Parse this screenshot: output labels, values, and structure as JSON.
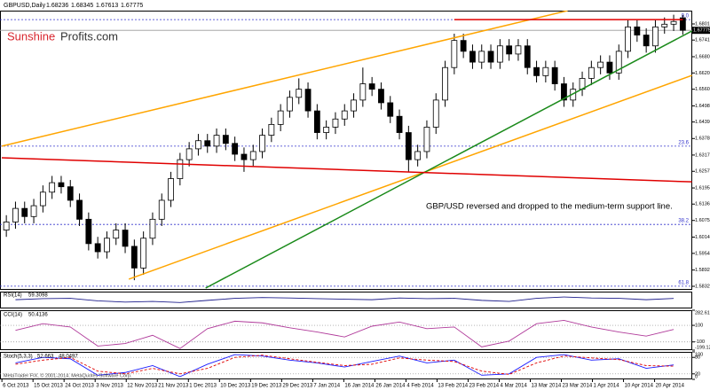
{
  "chart_data": [
    {
      "type": "candlestick",
      "title": "GBPUSD,Daily",
      "watermark": [
        "Sunshine",
        "Profits.com"
      ],
      "annotation": "GBP/USD reversed and dropped to the medium-term support line.",
      "ylim": [
        1.58194,
        1.68501
      ],
      "yticks": [
        {
          "value": 1.6801,
          "label": "1.68010"
        },
        {
          "value": 1.67415,
          "label": "1.67415"
        },
        {
          "value": 1.668,
          "label": "1.66800"
        },
        {
          "value": 1.662,
          "label": "1.66200"
        },
        {
          "value": 1.656,
          "label": "1.65600"
        },
        {
          "value": 1.64985,
          "label": "1.64985"
        },
        {
          "value": 1.6439,
          "label": "1.64390"
        },
        {
          "value": 1.6378,
          "label": "1.63780"
        },
        {
          "value": 1.6317,
          "label": "1.63170"
        },
        {
          "value": 1.6257,
          "label": "1.62570"
        },
        {
          "value": 1.61955,
          "label": "1.61955"
        },
        {
          "value": 1.6136,
          "label": "1.61360"
        },
        {
          "value": 1.60755,
          "label": "1.60755"
        },
        {
          "value": 1.6014,
          "label": "1.60140"
        },
        {
          "value": 1.5954,
          "label": "1.59540"
        },
        {
          "value": 1.58925,
          "label": "1.58925"
        },
        {
          "value": 1.58325,
          "label": "1.58325"
        }
      ],
      "xticks": [
        {
          "value": 0,
          "label": "6 Oct 2013"
        },
        {
          "value": 3.4,
          "label": "15 Oct 2013"
        },
        {
          "value": 6.8,
          "label": "24 Oct 2013"
        },
        {
          "value": 10.2,
          "label": "3 Nov 2013"
        },
        {
          "value": 13.6,
          "label": "12 Nov 2013"
        },
        {
          "value": 17,
          "label": "21 Nov 2013"
        },
        {
          "value": 20.4,
          "label": "1 Dec 2013"
        },
        {
          "value": 23.8,
          "label": "10 Dec 2013"
        },
        {
          "value": 27.2,
          "label": "19 Dec 2013"
        },
        {
          "value": 30.6,
          "label": "29 Dec 2013"
        },
        {
          "value": 34,
          "label": "7 Jan 2014"
        },
        {
          "value": 37.4,
          "label": "16 Jan 2014"
        },
        {
          "value": 40.8,
          "label": "26 Jan 2014"
        },
        {
          "value": 44.2,
          "label": "4 Feb 2014"
        },
        {
          "value": 47.6,
          "label": "13 Feb 2014"
        },
        {
          "value": 51,
          "label": "23 Feb 2014"
        },
        {
          "value": 54.4,
          "label": "4 Mar 2014"
        },
        {
          "value": 57.8,
          "label": "13 Mar 2014"
        },
        {
          "value": 61.2,
          "label": "23 Mar 2014"
        },
        {
          "value": 64.6,
          "label": "1 Apr 2014"
        },
        {
          "value": 68,
          "label": "10 Apr 2014"
        },
        {
          "value": 71.4,
          "label": "20 Apr 2014"
        }
      ],
      "open": [
        1.604,
        1.607,
        1.612,
        1.609,
        1.613,
        1.618,
        1.6215,
        1.62,
        1.615,
        1.608,
        1.599,
        1.596,
        1.601,
        1.604,
        1.598,
        1.59,
        1.601,
        1.608,
        1.615,
        1.623,
        1.63,
        1.634,
        1.637,
        1.635,
        1.639,
        1.636,
        1.632,
        1.63,
        1.633,
        1.639,
        1.643,
        1.648,
        1.653,
        1.656,
        1.648,
        1.64,
        1.642,
        1.645,
        1.648,
        1.652,
        1.658,
        1.656,
        1.651,
        1.646,
        1.64,
        1.63,
        1.633,
        1.642,
        1.652,
        1.664,
        1.674,
        1.67,
        1.666,
        1.67,
        1.666,
        1.672,
        1.669,
        1.672,
        1.664,
        1.661,
        1.664,
        1.658,
        1.652,
        1.656,
        1.66,
        1.664,
        1.666,
        1.662,
        1.67,
        1.679,
        1.676,
        1.672,
        1.679,
        1.68,
        1.68236
      ],
      "high": [
        1.6095,
        1.6145,
        1.6145,
        1.6155,
        1.6205,
        1.624,
        1.624,
        1.6225,
        1.6175,
        1.6105,
        1.6015,
        1.6035,
        1.6065,
        1.6065,
        1.6005,
        1.6035,
        1.6105,
        1.6175,
        1.6255,
        1.6325,
        1.6365,
        1.6395,
        1.6395,
        1.6415,
        1.6415,
        1.6385,
        1.6345,
        1.6355,
        1.6415,
        1.6455,
        1.6505,
        1.6555,
        1.66,
        1.6585,
        1.6505,
        1.6445,
        1.6475,
        1.6505,
        1.6545,
        1.664,
        1.6605,
        1.6585,
        1.6535,
        1.6485,
        1.6425,
        1.6355,
        1.6445,
        1.6545,
        1.6665,
        1.6765,
        1.6765,
        1.6725,
        1.6725,
        1.6725,
        1.6745,
        1.6745,
        1.6745,
        1.6745,
        1.6665,
        1.6665,
        1.6665,
        1.6605,
        1.6585,
        1.6625,
        1.6665,
        1.6685,
        1.6685,
        1.6725,
        1.6815,
        1.6815,
        1.6785,
        1.6815,
        1.6825,
        1.6835,
        1.68345
      ],
      "low": [
        1.6015,
        1.6045,
        1.6065,
        1.6065,
        1.6105,
        1.6155,
        1.6175,
        1.6125,
        1.6055,
        1.5965,
        1.5935,
        1.5935,
        1.5985,
        1.5955,
        1.5855,
        1.5875,
        1.5985,
        1.6055,
        1.6125,
        1.6205,
        1.6275,
        1.6315,
        1.6325,
        1.6325,
        1.6335,
        1.6295,
        1.6255,
        1.6275,
        1.6305,
        1.6365,
        1.6405,
        1.6455,
        1.6505,
        1.6455,
        1.6375,
        1.6375,
        1.6395,
        1.6425,
        1.6455,
        1.6495,
        1.6535,
        1.6485,
        1.6435,
        1.6375,
        1.6255,
        1.6275,
        1.6305,
        1.6395,
        1.6495,
        1.6615,
        1.6675,
        1.6635,
        1.6635,
        1.6635,
        1.6635,
        1.6665,
        1.6665,
        1.6615,
        1.6585,
        1.6585,
        1.6555,
        1.6495,
        1.6495,
        1.6535,
        1.6575,
        1.6615,
        1.6595,
        1.6595,
        1.6675,
        1.6735,
        1.6695,
        1.6695,
        1.6765,
        1.6775,
        1.67613
      ],
      "close": [
        1.607,
        1.612,
        1.609,
        1.613,
        1.618,
        1.6215,
        1.62,
        1.615,
        1.608,
        1.599,
        1.596,
        1.601,
        1.604,
        1.598,
        1.59,
        1.601,
        1.608,
        1.615,
        1.623,
        1.63,
        1.634,
        1.637,
        1.635,
        1.639,
        1.636,
        1.632,
        1.63,
        1.633,
        1.639,
        1.643,
        1.648,
        1.653,
        1.656,
        1.648,
        1.64,
        1.642,
        1.645,
        1.648,
        1.652,
        1.658,
        1.656,
        1.651,
        1.646,
        1.64,
        1.63,
        1.633,
        1.642,
        1.652,
        1.664,
        1.674,
        1.67,
        1.666,
        1.67,
        1.666,
        1.672,
        1.669,
        1.672,
        1.664,
        1.661,
        1.664,
        1.658,
        1.652,
        1.656,
        1.66,
        1.664,
        1.666,
        1.662,
        1.67,
        1.679,
        1.676,
        1.672,
        1.679,
        1.68,
        1.681,
        1.67775
      ],
      "levels": [
        {
          "name": "0.0",
          "price": 1.6817
        },
        {
          "name": "23.6",
          "price": 1.635
        },
        {
          "name": "38.2",
          "price": 1.6061
        },
        {
          "name": "61.8",
          "price": 1.5833
        }
      ],
      "level_color": "#3333cc",
      "trendlines": [
        {
          "color": "#ffa500",
          "x": [
            -0.5,
            61.4
          ],
          "y": [
            1.635,
            1.685
          ]
        },
        {
          "color": "#ffa500",
          "x": [
            13.4,
            75
          ],
          "y": [
            1.5859,
            1.6611
          ]
        },
        {
          "color": "#1a8a1a",
          "x": [
            21.8,
            75
          ],
          "y": [
            1.5826,
            1.6775
          ]
        },
        {
          "color": "#e00000",
          "x": [
            -0.5,
            75
          ],
          "y": [
            1.6307,
            1.6218
          ]
        },
        {
          "color": "#e00000",
          "x": [
            49,
            74
          ],
          "y": [
            1.6817,
            1.6817
          ]
        }
      ],
      "copyright": "MetaTrader FIX, © 2001-2014, MetaQuotes Software Corp."
    },
    {
      "type": "line",
      "title": "RSI(14)",
      "ylim": [
        0,
        100
      ],
      "x": [
        1,
        4,
        7,
        10,
        13,
        16,
        19,
        22,
        25,
        28,
        31,
        34,
        37,
        40,
        43,
        46,
        49,
        52,
        55,
        58,
        61,
        64,
        67,
        70,
        73
      ],
      "series": [
        {
          "color": "#1e1e8c",
          "values": [
            52,
            58,
            60,
            45,
            38,
            42,
            35,
            48,
            60,
            65,
            62,
            58,
            55,
            52,
            62,
            58,
            60,
            48,
            42,
            60,
            68,
            62,
            60,
            52,
            59.3098
          ]
        }
      ]
    },
    {
      "type": "line",
      "title": "CCI(14)",
      "ylim": [
        -199.1241,
        282.6171
      ],
      "yticks": [
        282.6171,
        100,
        -100,
        -199.1241
      ],
      "x": [
        1,
        4,
        7,
        10,
        13,
        16,
        19,
        22,
        25,
        28,
        31,
        34,
        37,
        40,
        43,
        46,
        49,
        52,
        55,
        58,
        61,
        64,
        67,
        70,
        73
      ],
      "series": [
        {
          "color": "#b03a9a",
          "values": [
            40,
            120,
            80,
            -150,
            -120,
            -20,
            -180,
            60,
            150,
            130,
            70,
            20,
            -40,
            90,
            140,
            60,
            80,
            -160,
            -90,
            120,
            160,
            80,
            20,
            -30,
            50.4136
          ]
        }
      ]
    },
    {
      "type": "line",
      "title": "Stoch(5,3,3)",
      "ylim": [
        0,
        100
      ],
      "yticks": [
        100,
        80,
        20,
        0
      ],
      "x": [
        1,
        4,
        7,
        10,
        13,
        16,
        19,
        22,
        25,
        28,
        31,
        34,
        37,
        40,
        43,
        46,
        49,
        52,
        55,
        58,
        61,
        64,
        67,
        70,
        73
      ],
      "series": [
        {
          "color": "#1a1aff",
          "values": [
            60,
            80,
            75,
            15,
            25,
            50,
            10,
            55,
            90,
            85,
            70,
            60,
            45,
            65,
            85,
            60,
            70,
            15,
            20,
            80,
            90,
            70,
            75,
            40,
            52.663
          ]
        },
        {
          "color": "#e00000",
          "dashed": true,
          "values": [
            55,
            70,
            80,
            30,
            20,
            40,
            20,
            40,
            80,
            88,
            75,
            62,
            50,
            55,
            78,
            70,
            65,
            30,
            18,
            60,
            85,
            78,
            72,
            50,
            48.0497
          ]
        }
      ]
    }
  ]
}
